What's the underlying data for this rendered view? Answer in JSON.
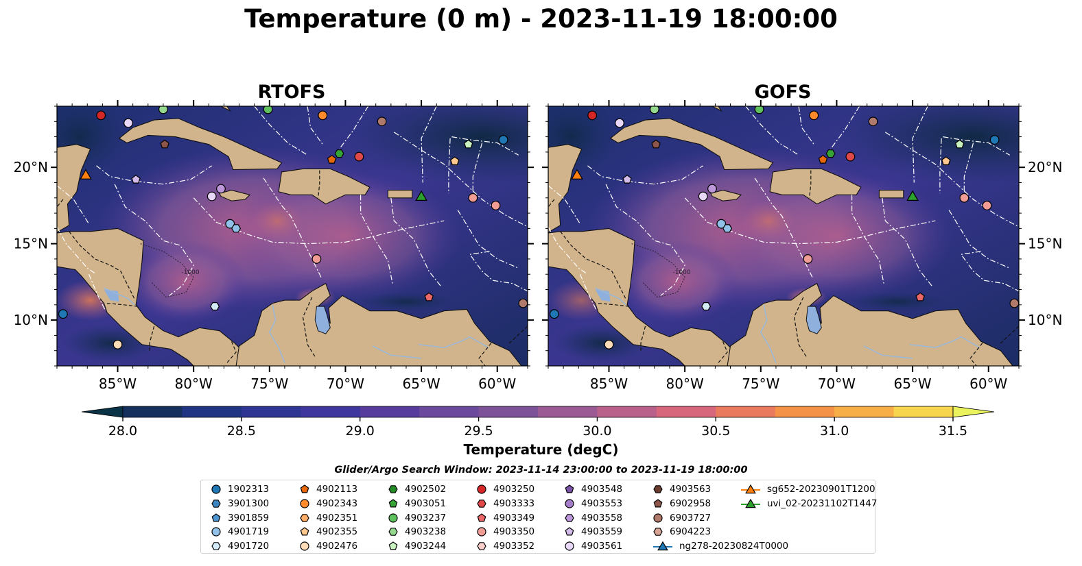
{
  "figure": {
    "title": "Temperature (0 m) - 2023-11-19 18:00:00",
    "search_window": "Glider/Argo Search Window: 2023-11-14 23:00:00 to 2023-11-19 18:00:00"
  },
  "panels": [
    {
      "title": "RTOFS",
      "lat_ticks_side": "left"
    },
    {
      "title": "GOFS",
      "lat_ticks_side": "right"
    }
  ],
  "map": {
    "lon_range": [
      -89.0,
      -58.0
    ],
    "lat_range": [
      7.0,
      24.0
    ],
    "lon_ticks": [
      {
        "value": -85,
        "label": "85°W"
      },
      {
        "value": -80,
        "label": "80°W"
      },
      {
        "value": -75,
        "label": "75°W"
      },
      {
        "value": -70,
        "label": "70°W"
      },
      {
        "value": -65,
        "label": "65°W"
      },
      {
        "value": -60,
        "label": "60°W"
      }
    ],
    "lat_ticks": [
      {
        "value": 20,
        "label": "20°N"
      },
      {
        "value": 15,
        "label": "15°N"
      },
      {
        "value": 10,
        "label": "10°N"
      }
    ],
    "bathymetry_label": "-1000",
    "land_color": "#d2b48c",
    "lake_color": "#8fb0dc"
  },
  "colorbar": {
    "label": "Temperature (degC)",
    "ticks": [
      "28.0",
      "28.5",
      "29.0",
      "29.5",
      "30.0",
      "30.5",
      "31.0",
      "31.5"
    ],
    "levels": [
      28.0,
      28.25,
      28.5,
      28.75,
      29.0,
      29.25,
      29.5,
      29.75,
      30.0,
      30.25,
      30.5,
      30.75,
      31.0,
      31.25,
      31.5
    ],
    "colors": [
      "#0b3347",
      "#16305e",
      "#1f3583",
      "#2e3593",
      "#40379e",
      "#573c9e",
      "#6b4a9e",
      "#7e5299",
      "#9b5a93",
      "#b9608b",
      "#d7677c",
      "#e97a5e",
      "#f49347",
      "#f8ae46",
      "#f7d64d",
      "#eaf35e"
    ]
  },
  "legend": {
    "items": [
      {
        "label": "1902313",
        "marker": "circle",
        "color": "#1f77b4"
      },
      {
        "label": "3901300",
        "marker": "hexagon",
        "color": "#3b86c0"
      },
      {
        "label": "3901859",
        "marker": "pentagon",
        "color": "#4c95d0"
      },
      {
        "label": "4901719",
        "marker": "circle",
        "color": "#92c2ea"
      },
      {
        "label": "4901720",
        "marker": "hexagon",
        "color": "#d4ebf8"
      },
      {
        "label": "4902113",
        "marker": "pentagon",
        "color": "#e8690c"
      },
      {
        "label": "4902343",
        "marker": "circle",
        "color": "#ff8b2d"
      },
      {
        "label": "4902351",
        "marker": "hexagon",
        "color": "#ffae68"
      },
      {
        "label": "4902355",
        "marker": "pentagon",
        "color": "#ffc88e"
      },
      {
        "label": "4902476",
        "marker": "circle",
        "color": "#ffdcb8"
      },
      {
        "label": "4902502",
        "marker": "hexagon",
        "color": "#238b23"
      },
      {
        "label": "4903051",
        "marker": "pentagon",
        "color": "#36a336"
      },
      {
        "label": "4903237",
        "marker": "circle",
        "color": "#5fc25f"
      },
      {
        "label": "4903238",
        "marker": "hexagon",
        "color": "#95d98f"
      },
      {
        "label": "4903244",
        "marker": "pentagon",
        "color": "#c9f1c0"
      },
      {
        "label": "4903250",
        "marker": "circle",
        "color": "#d62728"
      },
      {
        "label": "4903333",
        "marker": "hexagon",
        "color": "#e0494a"
      },
      {
        "label": "4903349",
        "marker": "pentagon",
        "color": "#ea6868"
      },
      {
        "label": "4903350",
        "marker": "circle",
        "color": "#f29c96"
      },
      {
        "label": "4903352",
        "marker": "hexagon",
        "color": "#fbd0cc"
      },
      {
        "label": "4903548",
        "marker": "pentagon",
        "color": "#7a52a8"
      },
      {
        "label": "4903553",
        "marker": "circle",
        "color": "#a57cc9"
      },
      {
        "label": "4903558",
        "marker": "hexagon",
        "color": "#bc98da"
      },
      {
        "label": "4903559",
        "marker": "pentagon",
        "color": "#d4bcea"
      },
      {
        "label": "4903561",
        "marker": "circle",
        "color": "#ead8f8"
      },
      {
        "label": "4903563",
        "marker": "hexagon",
        "color": "#6b3b2f"
      },
      {
        "label": "6902958",
        "marker": "pentagon",
        "color": "#8c564b"
      },
      {
        "label": "6903727",
        "marker": "circle",
        "color": "#b07a6c"
      },
      {
        "label": "6904223",
        "marker": "hexagon",
        "color": "#d8a394"
      },
      {
        "label": "ng278-20230824T0000",
        "marker": "triangle",
        "color": "#1f77b4"
      },
      {
        "label": "sg652-20230901T1200",
        "marker": "triangle",
        "color": "#ff7f0e"
      },
      {
        "label": "uvi_02-20231102T1447",
        "marker": "triangle",
        "color": "#2ca02c"
      }
    ]
  },
  "floats": [
    {
      "lon": -86.1,
      "lat": 23.4,
      "marker": "circle",
      "color": "#d62728"
    },
    {
      "lon": -84.3,
      "lat": 22.9,
      "marker": "circle",
      "color": "#ead8f8"
    },
    {
      "lon": -82.0,
      "lat": 23.8,
      "marker": "circle",
      "color": "#95d98f"
    },
    {
      "lon": -81.9,
      "lat": 21.5,
      "marker": "pentagon",
      "color": "#8c564b"
    },
    {
      "lon": -75.1,
      "lat": 23.8,
      "marker": "circle",
      "color": "#5fc25f"
    },
    {
      "lon": -71.5,
      "lat": 23.4,
      "marker": "circle",
      "color": "#ff8b2d"
    },
    {
      "lon": -67.6,
      "lat": 23.0,
      "marker": "circle",
      "color": "#b07a6c"
    },
    {
      "lon": -59.6,
      "lat": 21.8,
      "marker": "circle",
      "color": "#1f77b4"
    },
    {
      "lon": -61.9,
      "lat": 21.5,
      "marker": "pentagon",
      "color": "#c9f1c0"
    },
    {
      "lon": -70.4,
      "lat": 20.9,
      "marker": "hexagon",
      "color": "#36a336"
    },
    {
      "lon": -70.9,
      "lat": 20.5,
      "marker": "pentagon",
      "color": "#e8690c"
    },
    {
      "lon": -69.1,
      "lat": 20.7,
      "marker": "circle",
      "color": "#e0494a"
    },
    {
      "lon": -62.8,
      "lat": 20.4,
      "marker": "pentagon",
      "color": "#ffc88e"
    },
    {
      "lon": -83.8,
      "lat": 19.2,
      "marker": "pentagon",
      "color": "#d4bcea"
    },
    {
      "lon": -78.2,
      "lat": 18.6,
      "marker": "circle",
      "color": "#bc98da"
    },
    {
      "lon": -78.8,
      "lat": 18.1,
      "marker": "circle",
      "color": "#ead8f8"
    },
    {
      "lon": -61.6,
      "lat": 18.0,
      "marker": "circle",
      "color": "#f29c96"
    },
    {
      "lon": -60.1,
      "lat": 17.5,
      "marker": "circle",
      "color": "#f29c96"
    },
    {
      "lon": -77.6,
      "lat": 16.3,
      "marker": "circle",
      "color": "#92c2ea"
    },
    {
      "lon": -77.2,
      "lat": 16.0,
      "marker": "hexagon",
      "color": "#92c2ea"
    },
    {
      "lon": -71.9,
      "lat": 14.0,
      "marker": "circle",
      "color": "#f29c96"
    },
    {
      "lon": -64.5,
      "lat": 11.5,
      "marker": "pentagon",
      "color": "#ea6868"
    },
    {
      "lon": -58.3,
      "lat": 11.1,
      "marker": "circle",
      "color": "#b07a6c"
    },
    {
      "lon": -78.6,
      "lat": 10.9,
      "marker": "hexagon",
      "color": "#d4ebf8"
    },
    {
      "lon": -88.6,
      "lat": 10.4,
      "marker": "circle",
      "color": "#1f77b4"
    },
    {
      "lon": -85.0,
      "lat": 8.4,
      "marker": "circle",
      "color": "#ffdcb8"
    },
    {
      "lon": -87.1,
      "lat": 19.5,
      "marker": "triangle",
      "color": "#ff7f0e"
    },
    {
      "lon": -65.0,
      "lat": 18.1,
      "marker": "triangle",
      "color": "#2ca02c"
    }
  ]
}
